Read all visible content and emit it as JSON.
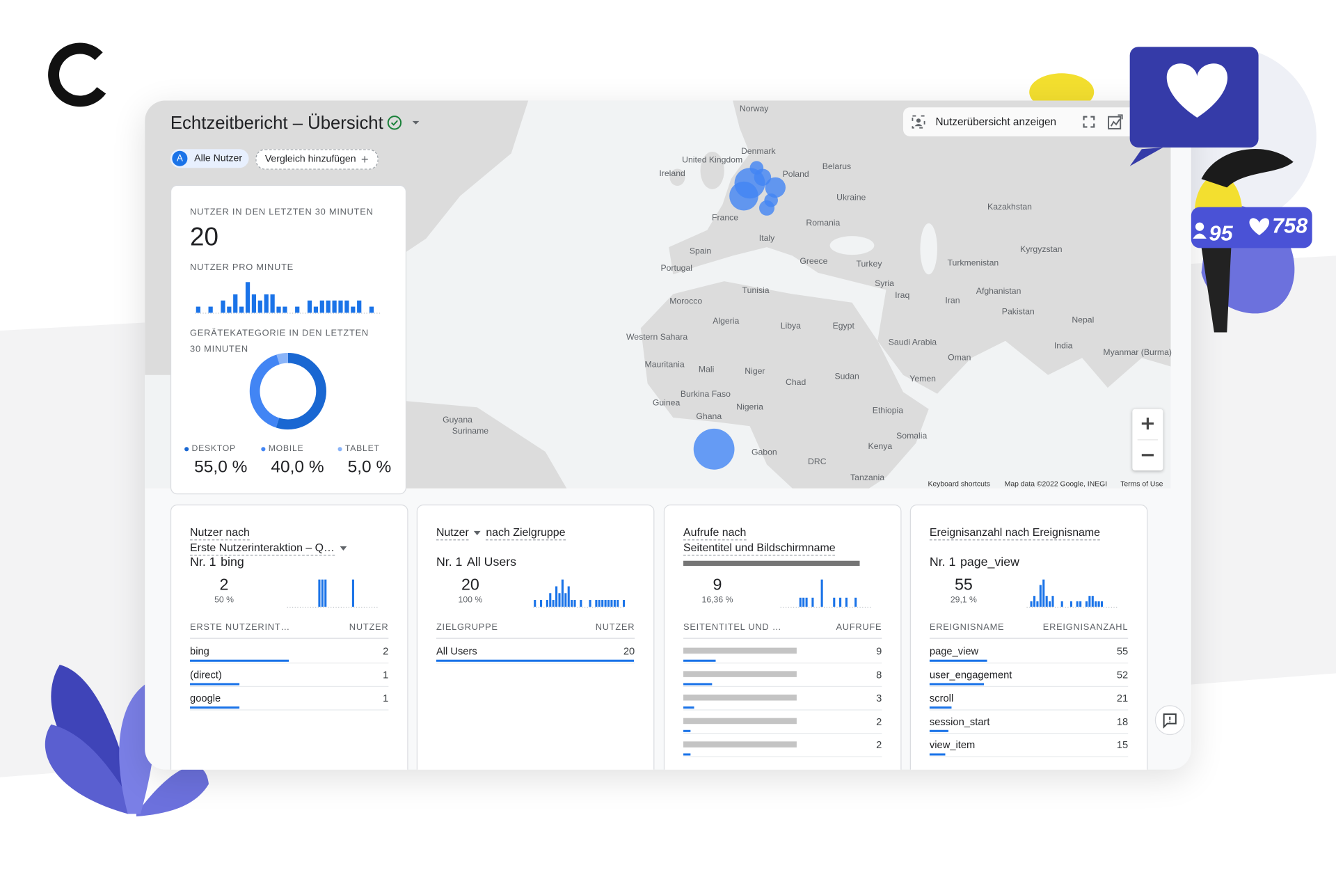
{
  "header": {
    "title": "Echtzeitbericht – Übersicht",
    "chip_badge": "A",
    "chips": [
      "Alle Nutzer",
      "Vergleich hinzufügen"
    ],
    "toolbar": "Nutzerübersicht anzeigen"
  },
  "decor": {
    "badges": [
      "95",
      "758"
    ]
  },
  "style": {
    "bar_color": "#1a73e8"
  },
  "map": {
    "labels": [
      "Norway",
      "Denmark",
      "United Kingdom",
      "Ireland",
      "Poland",
      "Belarus",
      "Ukraine",
      "Kazakhstan",
      "France",
      "Romania",
      "Italy",
      "Spain",
      "Portugal",
      "Greece",
      "Turkey",
      "Turkmenistan",
      "Kyrgyzstan",
      "Syria",
      "Iraq",
      "Iran",
      "Afghanistan",
      "Pakistan",
      "Tunisia",
      "Morocco",
      "Algeria",
      "Libya",
      "Egypt",
      "Nepal",
      "India",
      "Saudi Arabia",
      "Oman",
      "Western Sahara",
      "Mauritania",
      "Mali",
      "Niger",
      "Chad",
      "Sudan",
      "Yemen",
      "Burkina Faso",
      "Guinea",
      "Nigeria",
      "Ghana",
      "Ethiopia",
      "Somalia",
      "Kenya",
      "Gabon",
      "DRC",
      "Tanzania",
      "Guyana",
      "Suriname",
      "Myanmar (Burma)"
    ],
    "footer": [
      "Keyboard shortcuts",
      "Map data ©2022 Google, INEGI",
      "Terms of Use"
    ]
  },
  "realtime": {
    "users_label": "NUTZER IN DEN LETZTEN 30 MINUTEN",
    "users": 20,
    "per_minute_label": "NUTZER PRO MINUTE",
    "per_minute": [
      1,
      0,
      1,
      0,
      2,
      1,
      3,
      1,
      5,
      3,
      2,
      3,
      3,
      1,
      1,
      0,
      1,
      0,
      2,
      1,
      2,
      2,
      2,
      2,
      2,
      1,
      2,
      0,
      1,
      0
    ],
    "device_label": "GERÄTEKATEGORIE IN DEN LETZTEN 30 MINUTEN",
    "devices": {
      "type": "pie",
      "categories": [
        "DESKTOP",
        "MOBILE",
        "TABLET"
      ],
      "values": [
        55,
        40,
        5
      ],
      "value_labels": [
        "55,0 %",
        "40,0 %",
        "5,0 %"
      ],
      "colors": [
        "#1967d2",
        "#4285f4",
        "#8ab4f8"
      ]
    }
  },
  "cards": [
    {
      "title": [
        [
          "Nutzer nach"
        ],
        [
          "Erste Nutzerinteraktion – Q…"
        ]
      ],
      "rank": "Nr. 1",
      "top": "bing",
      "value": 2,
      "share": {
        "value": 50,
        "label": "50 %"
      },
      "spark": [
        0,
        0,
        0,
        0,
        0,
        0,
        0,
        0,
        0,
        0,
        1,
        1,
        1,
        0,
        0,
        0,
        0,
        0,
        0,
        0,
        0,
        1,
        0,
        0,
        0,
        0,
        0,
        0,
        0,
        0
      ],
      "columns": [
        "ERSTE NUTZERINT…",
        "NUTZER"
      ],
      "rows": [
        {
          "name": "bing",
          "value": 2
        },
        {
          "name": "(direct)",
          "value": 1
        },
        {
          "name": "google",
          "value": 1
        }
      ]
    },
    {
      "title": [
        [
          "Nutzer",
          "nach Zielgruppe"
        ]
      ],
      "rank": "Nr. 1",
      "top": "All Users",
      "value": 20,
      "share": {
        "value": 100,
        "label": "100 %"
      },
      "spark": [
        1,
        0,
        1,
        0,
        1,
        2,
        1,
        3,
        2,
        4,
        2,
        3,
        1,
        1,
        0,
        1,
        0,
        0,
        1,
        0,
        1,
        1,
        1,
        1,
        1,
        1,
        1,
        1,
        0,
        1
      ],
      "columns": [
        "ZIELGRUPPE",
        "NUTZER"
      ],
      "rows": [
        {
          "name": "All Users",
          "value": 20
        }
      ]
    },
    {
      "title": [
        [
          "Aufrufe nach"
        ],
        [
          "Seitentitel und Bildschirmname"
        ]
      ],
      "value": 9,
      "share": {
        "value": 16.36,
        "label": "16,36 %"
      },
      "spark": [
        0,
        0,
        0,
        0,
        0,
        0,
        1,
        1,
        1,
        0,
        1,
        0,
        0,
        3,
        0,
        0,
        0,
        1,
        0,
        1,
        0,
        1,
        0,
        0,
        1,
        0,
        0,
        0,
        0,
        0
      ],
      "columns": [
        "SEITENTITEL UND …",
        "AUFRUFE"
      ],
      "rows": [
        {
          "value": 9
        },
        {
          "value": 8
        },
        {
          "value": 3
        },
        {
          "value": 2
        },
        {
          "value": 2
        }
      ]
    },
    {
      "title": [
        [
          "Ereignisanzahl nach Ereignisname"
        ]
      ],
      "rank": "Nr. 1",
      "top": "page_view",
      "value": 55,
      "share": {
        "value": 29.1,
        "label": "29,1 %"
      },
      "spark": [
        0,
        1,
        2,
        1,
        4,
        5,
        2,
        1,
        2,
        0,
        0,
        1,
        0,
        0,
        1,
        0,
        1,
        1,
        0,
        1,
        2,
        2,
        1,
        1,
        1,
        0,
        0,
        0,
        0,
        0
      ],
      "columns": [
        "EREIGNISNAME",
        "EREIGNISANZAHL"
      ],
      "rows": [
        {
          "name": "page_view",
          "value": 55
        },
        {
          "name": "user_engagement",
          "value": 52
        },
        {
          "name": "scroll",
          "value": 21
        },
        {
          "name": "session_start",
          "value": 18
        },
        {
          "name": "view_item",
          "value": 15
        }
      ]
    }
  ]
}
